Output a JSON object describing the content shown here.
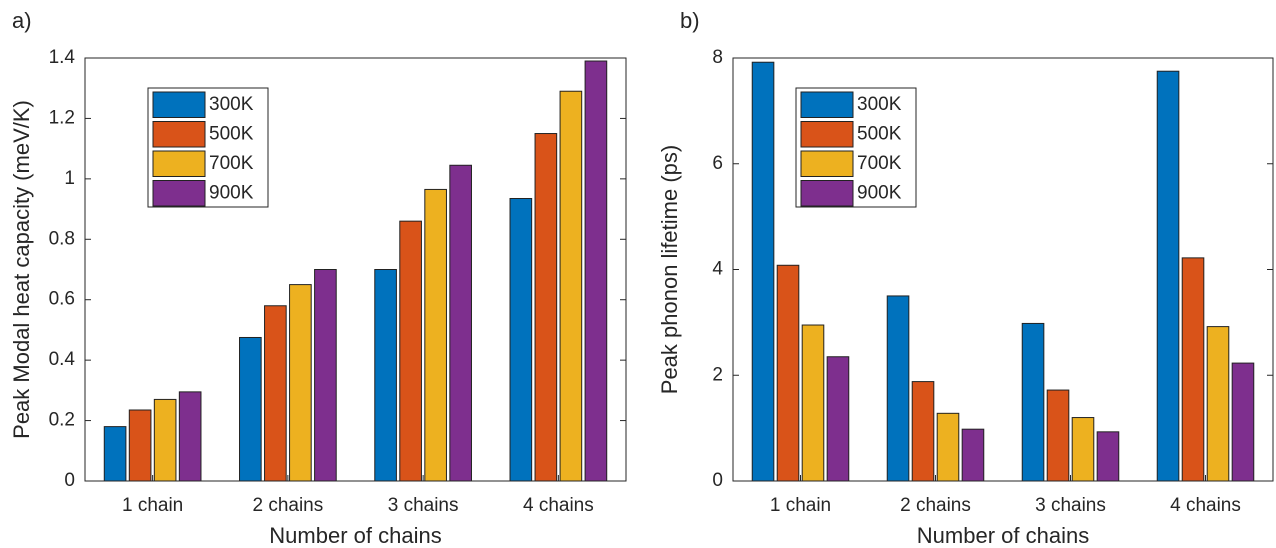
{
  "chart_data": [
    {
      "type": "bar",
      "panel_label": "a)",
      "xlabel": "Number of chains",
      "ylabel": "Peak Modal heat capacity (meV/K)",
      "categories": [
        "1 chain",
        "2 chains",
        "3 chains",
        "4 chains"
      ],
      "series": [
        {
          "name": "300K",
          "color": "#0072bd",
          "values": [
            0.18,
            0.475,
            0.7,
            0.935
          ]
        },
        {
          "name": "500K",
          "color": "#d95319",
          "values": [
            0.235,
            0.58,
            0.86,
            1.15
          ]
        },
        {
          "name": "700K",
          "color": "#edb120",
          "values": [
            0.27,
            0.65,
            0.965,
            1.29
          ]
        },
        {
          "name": "900K",
          "color": "#7e2f8e",
          "values": [
            0.295,
            0.7,
            1.045,
            1.39
          ]
        }
      ],
      "ylim": [
        0,
        1.4
      ],
      "yticks": [
        0,
        0.2,
        0.4,
        0.6,
        0.8,
        1,
        1.2,
        1.4
      ],
      "legend": "northwest"
    },
    {
      "type": "bar",
      "panel_label": "b)",
      "xlabel": "Number of chains",
      "ylabel": "Peak phonon lifetime (ps)",
      "categories": [
        "1 chain",
        "2 chains",
        "3 chains",
        "4 chains"
      ],
      "series": [
        {
          "name": "300K",
          "color": "#0072bd",
          "values": [
            7.92,
            3.5,
            2.98,
            7.75
          ]
        },
        {
          "name": "500K",
          "color": "#d95319",
          "values": [
            4.08,
            1.88,
            1.72,
            4.22
          ]
        },
        {
          "name": "700K",
          "color": "#edb120",
          "values": [
            2.95,
            1.28,
            1.2,
            2.92
          ]
        },
        {
          "name": "900K",
          "color": "#7e2f8e",
          "values": [
            2.35,
            0.98,
            0.93,
            2.23
          ]
        }
      ],
      "ylim": [
        0,
        8
      ],
      "yticks": [
        0,
        2,
        4,
        6,
        8
      ],
      "legend": "northwest"
    }
  ]
}
